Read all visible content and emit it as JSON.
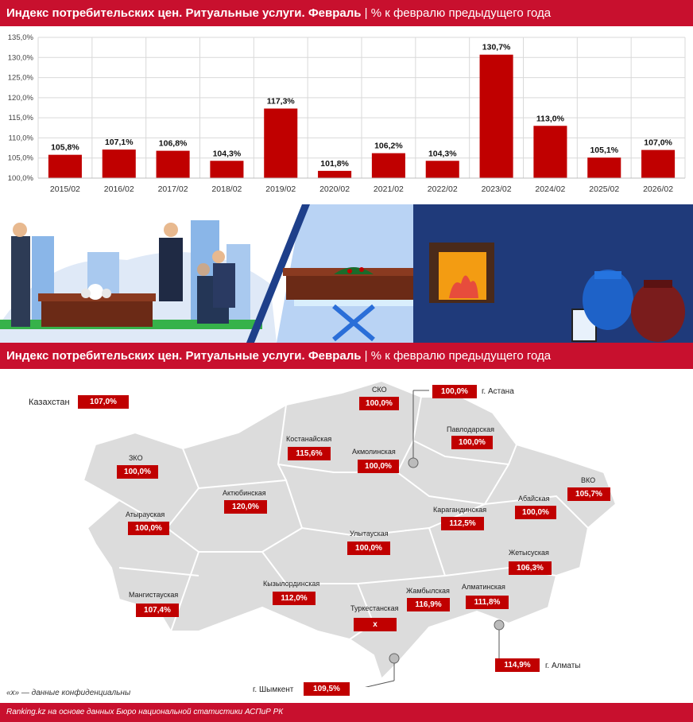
{
  "header_top": {
    "title_bold": "Индекс потребительских цен. Ритуальные услуги. Февраль",
    "separator": "|",
    "subtitle": "% к февралю предыдущего года"
  },
  "header_map": {
    "title_bold": "Индекс потребительских цен. Ритуальные услуги. Февраль",
    "separator": "|",
    "subtitle": "% к февралю предыдущего года"
  },
  "chart_data": {
    "type": "bar",
    "categories": [
      "2015/02",
      "2016/02",
      "2017/02",
      "2018/02",
      "2019/02",
      "2020/02",
      "2021/02",
      "2022/02",
      "2023/02",
      "2024/02",
      "2025/02",
      "2026/02"
    ],
    "values": [
      105.8,
      107.1,
      106.8,
      104.3,
      117.3,
      101.8,
      106.2,
      104.3,
      130.7,
      113.0,
      105.1,
      107.0
    ],
    "value_labels": [
      "105,8%",
      "107,1%",
      "106,8%",
      "104,3%",
      "117,3%",
      "101,8%",
      "106,2%",
      "104,3%",
      "130,7%",
      "113,0%",
      "105,1%",
      "107,0%"
    ],
    "y_ticks": [
      "100,0%",
      "105,0%",
      "110,0%",
      "115,0%",
      "120,0%",
      "125,0%",
      "130,0%",
      "135,0%"
    ],
    "ylim": [
      100,
      135
    ],
    "grid": true,
    "bar_color": "#c00000"
  },
  "map": {
    "kz": {
      "name": "Казахстан",
      "value": "107,0%"
    },
    "regions": [
      {
        "name": "СКО",
        "value": "100,0%"
      },
      {
        "name": "Костанайская",
        "value": "115,6%"
      },
      {
        "name": "Акмолинская",
        "value": "100,0%"
      },
      {
        "name": "Павлодарская",
        "value": "100,0%"
      },
      {
        "name": "ЗКО",
        "value": "100,0%"
      },
      {
        "name": "Актюбинская",
        "value": "120,0%"
      },
      {
        "name": "Атырауская",
        "value": "100,0%"
      },
      {
        "name": "Карагандинская",
        "value": "112,5%"
      },
      {
        "name": "Абайская",
        "value": "100,0%"
      },
      {
        "name": "ВКО",
        "value": "105,7%"
      },
      {
        "name": "Улытауская",
        "value": "100,0%"
      },
      {
        "name": "Жетысуская",
        "value": "106,3%"
      },
      {
        "name": "Мангистауская",
        "value": "107,4%"
      },
      {
        "name": "Кызылординская",
        "value": "112,0%"
      },
      {
        "name": "Жамбылская",
        "value": "116,9%"
      },
      {
        "name": "Алматинская",
        "value": "111,8%"
      },
      {
        "name": "Туркестанская",
        "value": "x"
      }
    ],
    "cities": [
      {
        "name": "г. Астана",
        "value": "100,0%"
      },
      {
        "name": "г. Алматы",
        "value": "114,9%"
      },
      {
        "name": "г. Шымкент",
        "value": "109,5%"
      }
    ]
  },
  "note": "«х» — данные конфиденциальны",
  "footer": "Ranking.kz на основе данных Бюро национальной статистики АСПиР РК",
  "colors": {
    "brand_red": "#c8102e",
    "bar": "#c00000",
    "map_fill": "#dcdcdc"
  }
}
